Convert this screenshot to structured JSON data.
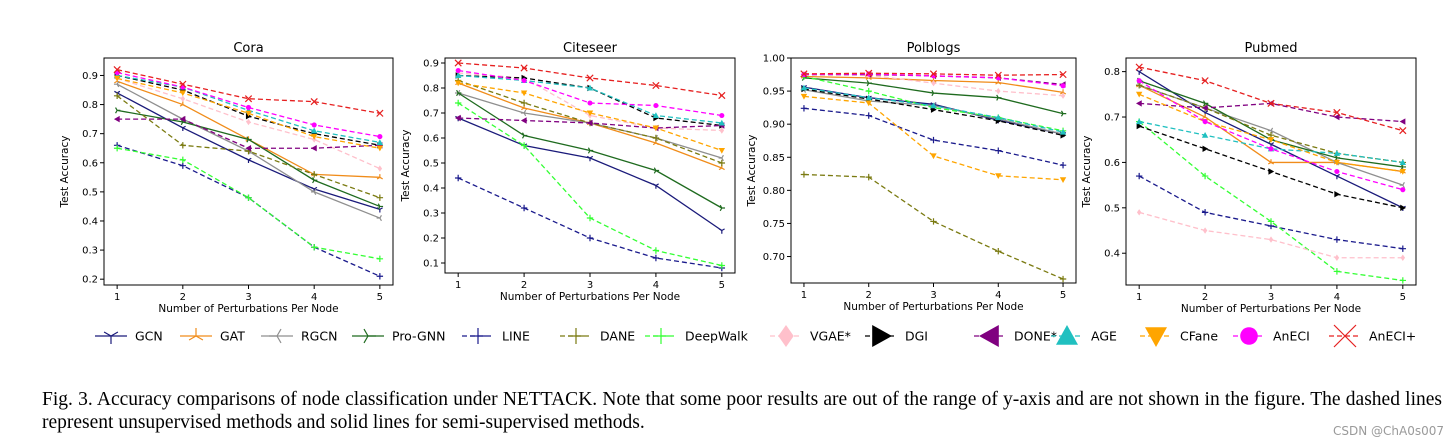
{
  "figure": {
    "caption": "Fig. 3.  Accuracy comparisons of node classification under NETTACK. Note that some poor results are out of the range of y-axis and are not shown in the figure. The dashed lines represent unsupervised methods and solid lines for semi-supervised methods.",
    "watermark": "CSDN @ChA0s007"
  },
  "legend": [
    {
      "name": "GCN",
      "color": "#1a1a7a",
      "marker": "tri_down",
      "dash": false
    },
    {
      "name": "GAT",
      "color": "#f08c1a",
      "marker": "tri_up",
      "dash": false
    },
    {
      "name": "RGCN",
      "color": "#8f8f8f",
      "marker": "tri_left",
      "dash": false
    },
    {
      "name": "Pro-GNN",
      "color": "#1f6b1f",
      "marker": "tri_right",
      "dash": false
    },
    {
      "name": "LINE",
      "color": "#1a1a8c",
      "marker": "plus",
      "dash": true
    },
    {
      "name": "DANE",
      "color": "#7a7a10",
      "marker": "plus",
      "dash": true
    },
    {
      "name": "DeepWalk",
      "color": "#33ff33",
      "marker": "plus",
      "dash": true
    },
    {
      "name": "VGAE*",
      "color": "#ffc0cb",
      "marker": "diamond",
      "dash": true
    },
    {
      "name": "DGI",
      "color": "#000000",
      "marker": "triright",
      "dash": true
    },
    {
      "name": "DONE*",
      "color": "#800080",
      "marker": "trileft",
      "dash": true
    },
    {
      "name": "AGE",
      "color": "#20c0c0",
      "marker": "triup",
      "dash": true
    },
    {
      "name": "CFane",
      "color": "#ffa500",
      "marker": "tridown",
      "dash": true
    },
    {
      "name": "AnECI",
      "color": "#ff00ff",
      "marker": "circle",
      "dash": true
    },
    {
      "name": "AnECI+",
      "color": "#e62020",
      "marker": "x",
      "dash": true
    }
  ],
  "chart_data": [
    {
      "type": "line",
      "title": "Cora",
      "xlabel": "Number of Perturbations Per Node",
      "ylabel": "Test Accuracy",
      "x": [
        1,
        2,
        3,
        4,
        5
      ],
      "xlim": [
        0.8,
        5.2
      ],
      "ylim": [
        0.18,
        0.96
      ],
      "yticks": [
        0.2,
        0.3,
        0.4,
        0.5,
        0.6,
        0.7,
        0.8,
        0.9
      ],
      "ytick_labels": [
        "0.2",
        "0.3",
        "0.4",
        "0.5",
        "0.6",
        "0.7",
        "0.8",
        "0.9"
      ],
      "series": [
        {
          "name": "GCN",
          "values": [
            0.84,
            0.72,
            0.61,
            0.51,
            0.44
          ]
        },
        {
          "name": "GAT",
          "values": [
            0.88,
            0.8,
            0.68,
            0.56,
            0.55
          ]
        },
        {
          "name": "RGCN",
          "values": [
            0.87,
            0.75,
            0.64,
            0.5,
            0.41
          ]
        },
        {
          "name": "Pro-GNN",
          "values": [
            0.78,
            0.74,
            0.68,
            0.54,
            0.45
          ]
        },
        {
          "name": "LINE",
          "values": [
            0.66,
            0.59,
            0.48,
            0.31,
            0.21
          ]
        },
        {
          "name": "DANE",
          "values": [
            0.83,
            0.66,
            0.64,
            0.56,
            0.48
          ]
        },
        {
          "name": "DeepWalk",
          "values": [
            0.65,
            0.61,
            0.48,
            0.31,
            0.27
          ]
        },
        {
          "name": "VGAE*",
          "values": [
            0.89,
            0.82,
            0.74,
            0.68,
            0.58
          ]
        },
        {
          "name": "DGI",
          "values": [
            0.9,
            0.85,
            0.76,
            0.7,
            0.66
          ]
        },
        {
          "name": "DONE*",
          "values": [
            0.75,
            0.75,
            0.65,
            0.65,
            0.66
          ]
        },
        {
          "name": "AGE",
          "values": [
            0.9,
            0.86,
            0.78,
            0.71,
            0.67
          ]
        },
        {
          "name": "CFane",
          "values": [
            0.89,
            0.84,
            0.77,
            0.69,
            0.65
          ]
        },
        {
          "name": "AnECI",
          "values": [
            0.91,
            0.86,
            0.79,
            0.73,
            0.69
          ]
        },
        {
          "name": "AnECI+",
          "values": [
            0.92,
            0.87,
            0.82,
            0.81,
            0.77
          ]
        }
      ]
    },
    {
      "type": "line",
      "title": "Citeseer",
      "xlabel": "Number of Perturbations Per Node",
      "ylabel": "Test Accuracy",
      "x": [
        1,
        2,
        3,
        4,
        5
      ],
      "xlim": [
        0.8,
        5.2
      ],
      "ylim": [
        0.06,
        0.92
      ],
      "yticks": [
        0.1,
        0.2,
        0.3,
        0.4,
        0.5,
        0.6,
        0.7,
        0.8,
        0.9
      ],
      "ytick_labels": [
        "0.1",
        "0.2",
        "0.3",
        "0.4",
        "0.5",
        "0.6",
        "0.7",
        "0.8",
        "0.9"
      ],
      "series": [
        {
          "name": "GCN",
          "values": [
            0.68,
            0.57,
            0.52,
            0.41,
            0.23
          ]
        },
        {
          "name": "GAT",
          "values": [
            0.82,
            0.72,
            0.66,
            0.58,
            0.48
          ]
        },
        {
          "name": "RGCN",
          "values": [
            0.78,
            0.7,
            0.66,
            0.6,
            0.52
          ]
        },
        {
          "name": "Pro-GNN",
          "values": [
            0.78,
            0.61,
            0.55,
            0.47,
            0.32
          ]
        },
        {
          "name": "LINE",
          "values": [
            0.44,
            0.32,
            0.2,
            0.12,
            0.08
          ]
        },
        {
          "name": "DANE",
          "values": [
            0.83,
            0.74,
            0.66,
            0.6,
            0.5
          ]
        },
        {
          "name": "DeepWalk",
          "values": [
            0.74,
            0.57,
            0.28,
            0.15,
            0.09
          ]
        },
        {
          "name": "VGAE*",
          "values": [
            0.86,
            0.84,
            0.69,
            0.64,
            0.63
          ]
        },
        {
          "name": "DGI",
          "values": [
            0.85,
            0.84,
            0.8,
            0.68,
            0.65
          ]
        },
        {
          "name": "DONE*",
          "values": [
            0.68,
            0.67,
            0.66,
            0.64,
            0.65
          ]
        },
        {
          "name": "AGE",
          "values": [
            0.85,
            0.83,
            0.8,
            0.69,
            0.66
          ]
        },
        {
          "name": "CFane",
          "values": [
            0.82,
            0.78,
            0.7,
            0.64,
            0.55
          ]
        },
        {
          "name": "AnECI",
          "values": [
            0.87,
            0.83,
            0.74,
            0.73,
            0.69
          ]
        },
        {
          "name": "AnECI+",
          "values": [
            0.9,
            0.88,
            0.84,
            0.81,
            0.77
          ]
        }
      ]
    },
    {
      "type": "line",
      "title": "Polblogs",
      "xlabel": "Number of Perturbations Per Node",
      "ylabel": "Test Accuracy",
      "x": [
        1,
        2,
        3,
        4,
        5
      ],
      "xlim": [
        0.8,
        5.2
      ],
      "ylim": [
        0.66,
        1.0
      ],
      "yticks": [
        0.7,
        0.75,
        0.8,
        0.85,
        0.9,
        0.95,
        1.0
      ],
      "ytick_labels": [
        "0.70",
        "0.75",
        "0.80",
        "0.85",
        "0.90",
        "0.95",
        "1.00"
      ],
      "series": [
        {
          "name": "GCN",
          "values": [
            0.956,
            0.94,
            0.93,
            0.906,
            0.885
          ]
        },
        {
          "name": "GAT",
          "values": [
            0.972,
            0.97,
            0.966,
            0.963,
            0.948
          ]
        },
        {
          "name": "RGCN",
          "values": [
            0.952,
            0.935,
            0.928,
            0.908,
            0.885
          ]
        },
        {
          "name": "Pro-GNN",
          "values": [
            0.97,
            0.962,
            0.947,
            0.94,
            0.916
          ]
        },
        {
          "name": "LINE",
          "values": [
            0.924,
            0.913,
            0.876,
            0.86,
            0.838
          ]
        },
        {
          "name": "DANE",
          "values": [
            0.824,
            0.82,
            0.753,
            0.708,
            0.666
          ]
        },
        {
          "name": "DeepWalk",
          "values": [
            0.972,
            0.95,
            0.925,
            0.91,
            0.89
          ]
        },
        {
          "name": "VGAE*",
          "values": [
            0.976,
            0.974,
            0.962,
            0.95,
            0.943
          ]
        },
        {
          "name": "DGI",
          "values": [
            0.953,
            0.938,
            0.922,
            0.905,
            0.883
          ]
        },
        {
          "name": "DONE*",
          "values": [
            0.975,
            0.975,
            0.973,
            0.97,
            0.96
          ]
        },
        {
          "name": "AGE",
          "values": [
            0.955,
            0.94,
            0.928,
            0.91,
            0.888
          ]
        },
        {
          "name": "CFane",
          "values": [
            0.942,
            0.932,
            0.852,
            0.822,
            0.816
          ]
        },
        {
          "name": "AnECI",
          "values": [
            0.975,
            0.976,
            0.973,
            0.97,
            0.958
          ]
        },
        {
          "name": "AnECI+",
          "values": [
            0.976,
            0.977,
            0.976,
            0.974,
            0.975
          ]
        }
      ]
    },
    {
      "type": "line",
      "title": "Pubmed",
      "xlabel": "Number of Perturbations Per Node",
      "ylabel": "Test Accuracy",
      "x": [
        1,
        2,
        3,
        4,
        5
      ],
      "xlim": [
        0.8,
        5.2
      ],
      "ylim": [
        0.33,
        0.83
      ],
      "yticks": [
        0.4,
        0.5,
        0.6,
        0.7,
        0.8
      ],
      "ytick_labels": [
        "0.4",
        "0.5",
        "0.6",
        "0.7",
        "0.8"
      ],
      "series": [
        {
          "name": "GCN",
          "values": [
            0.8,
            0.71,
            0.64,
            0.57,
            0.5
          ]
        },
        {
          "name": "GAT",
          "values": [
            0.77,
            0.7,
            0.6,
            0.6,
            0.58
          ]
        },
        {
          "name": "RGCN",
          "values": [
            0.77,
            0.72,
            0.67,
            0.6,
            0.55
          ]
        },
        {
          "name": "Pro-GNN",
          "values": [
            0.78,
            0.73,
            0.65,
            0.61,
            0.59
          ]
        },
        {
          "name": "LINE",
          "values": [
            0.57,
            0.49,
            0.46,
            0.43,
            0.41
          ]
        },
        {
          "name": "DANE",
          "values": [
            0.77,
            0.72,
            0.66,
            0.62,
            0.6
          ]
        },
        {
          "name": "DeepWalk",
          "values": [
            0.69,
            0.57,
            0.47,
            0.36,
            0.34
          ]
        },
        {
          "name": "VGAE*",
          "values": [
            0.49,
            0.45,
            0.43,
            0.39,
            0.39
          ]
        },
        {
          "name": "DGI",
          "values": [
            0.68,
            0.63,
            0.58,
            0.53,
            0.5
          ]
        },
        {
          "name": "DONE*",
          "values": [
            0.73,
            0.72,
            0.73,
            0.7,
            0.69
          ]
        },
        {
          "name": "AGE",
          "values": [
            0.69,
            0.66,
            0.63,
            0.62,
            0.6
          ]
        },
        {
          "name": "CFane",
          "values": [
            0.75,
            0.69,
            0.65,
            0.6,
            0.58
          ]
        },
        {
          "name": "AnECI",
          "values": [
            0.78,
            0.69,
            0.63,
            0.58,
            0.54
          ]
        },
        {
          "name": "AnECI+",
          "values": [
            0.81,
            0.78,
            0.73,
            0.71,
            0.67
          ]
        }
      ]
    }
  ]
}
